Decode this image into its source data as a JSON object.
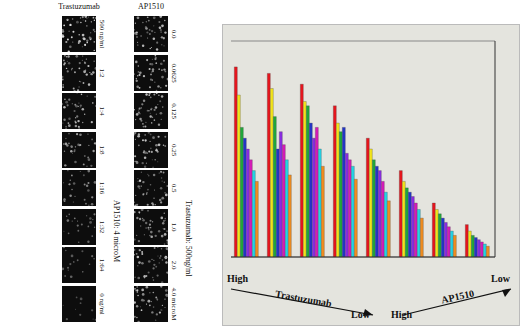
{
  "panels": {
    "columns": [
      {
        "title": "Trastuzumab",
        "labels": [
          "500 ng/ml",
          "1:2",
          "1:4",
          "1:8",
          "1:16",
          "1:32",
          "1:64",
          "0 ng/ml"
        ],
        "side_label": "AP1510: 4 microM"
      },
      {
        "title": "AP1510",
        "labels": [
          "0.0",
          "0.0625",
          "0.125",
          "0.25",
          "0.5",
          "1.0",
          "2.0",
          "4.0 microM"
        ],
        "side_label": "Trastuzumab: 500ng/ml"
      }
    ]
  },
  "chart_data": {
    "type": "bar",
    "categories": [
      null,
      null,
      null,
      null,
      null,
      null,
      null,
      null
    ],
    "series": [
      {
        "color": "#e8141c",
        "values": [
          88,
          85,
          80,
          70,
          55,
          40,
          25,
          15
        ]
      },
      {
        "color": "#f2e41a",
        "values": [
          75,
          78,
          72,
          62,
          50,
          35,
          22,
          12
        ]
      },
      {
        "color": "#1fa83a",
        "values": [
          60,
          65,
          70,
          58,
          45,
          32,
          20,
          10
        ]
      },
      {
        "color": "#2235c8",
        "values": [
          55,
          50,
          62,
          60,
          42,
          30,
          18,
          9
        ]
      },
      {
        "color": "#8a2be2",
        "values": [
          50,
          58,
          55,
          48,
          40,
          28,
          16,
          8
        ]
      },
      {
        "color": "#d61ab8",
        "values": [
          45,
          52,
          60,
          45,
          35,
          25,
          14,
          7
        ]
      },
      {
        "color": "#22d3e6",
        "values": [
          40,
          45,
          50,
          42,
          30,
          22,
          12,
          6
        ]
      },
      {
        "color": "#f08c1e",
        "values": [
          35,
          38,
          42,
          36,
          26,
          18,
          10,
          5
        ]
      }
    ],
    "ylim": [
      0,
      100
    ],
    "yticks": [
      0,
      20,
      40,
      60,
      80,
      100
    ],
    "grid": true,
    "tick_labels": false,
    "xlabel": "Trastuzumab",
    "xlabel_ends": [
      "High",
      "Low"
    ],
    "zlabel": "AP1510",
    "zlabel_ends": [
      "High",
      "Low"
    ]
  }
}
